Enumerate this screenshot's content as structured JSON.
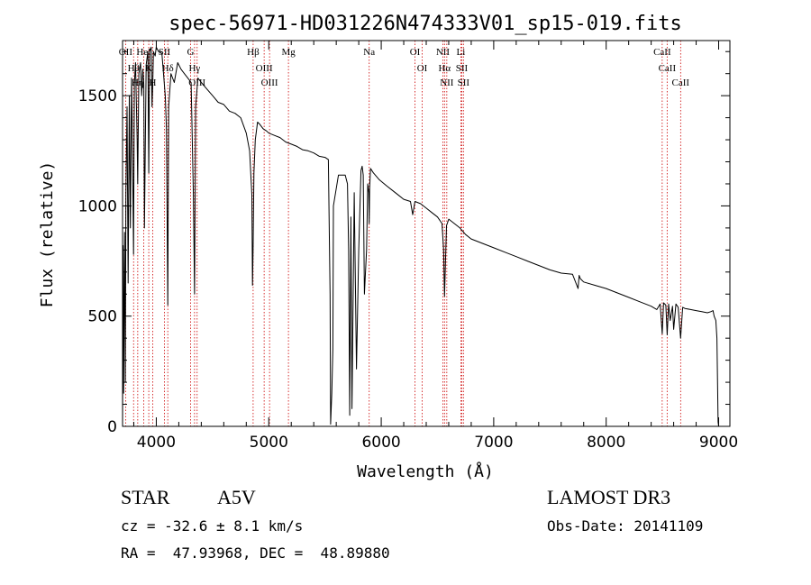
{
  "chart_data": {
    "type": "line",
    "title": "spec-56971-HD031226N474333V01_sp15-019.fits",
    "xlabel": "Wavelength (Å)",
    "ylabel": "Flux (relative)",
    "xlim": [
      3700,
      9100
    ],
    "ylim": [
      0,
      1750
    ],
    "xticks": [
      4000,
      5000,
      6000,
      7000,
      8000,
      9000
    ],
    "xtick_labels": [
      "4000",
      "5000",
      "6000",
      "7000",
      "8000",
      "9000"
    ],
    "yticks": [
      0,
      500,
      1000,
      1500
    ],
    "ytick_labels": [
      "0",
      "500",
      "1000",
      "1500"
    ],
    "series": [
      {
        "name": "spectrum",
        "x": [
          3700,
          3705,
          3710,
          3718,
          3725,
          3730,
          3740,
          3750,
          3760,
          3770,
          3780,
          3790,
          3798,
          3805,
          3815,
          3830,
          3835,
          3845,
          3860,
          3870,
          3880,
          3889,
          3895,
          3910,
          3925,
          3933,
          3940,
          3955,
          3962,
          3968,
          3975,
          3990,
          4000,
          4020,
          4050,
          4080,
          4090,
          4102,
          4110,
          4130,
          4160,
          4190,
          4220,
          4250,
          4280,
          4310,
          4330,
          4340,
          4350,
          4370,
          4400,
          4450,
          4500,
          4550,
          4600,
          4650,
          4700,
          4750,
          4800,
          4830,
          4850,
          4855,
          4861,
          4868,
          4880,
          4900,
          4920,
          4950,
          4980,
          5000,
          5050,
          5100,
          5150,
          5200,
          5250,
          5300,
          5350,
          5400,
          5450,
          5500,
          5530,
          5545,
          5550,
          5560,
          5570,
          5575,
          5620,
          5680,
          5700,
          5710,
          5720,
          5730,
          5740,
          5760,
          5780,
          5800,
          5820,
          5830,
          5840,
          5850,
          5870,
          5880,
          5890,
          5893,
          5897,
          5905,
          5930,
          5980,
          6050,
          6100,
          6150,
          6200,
          6260,
          6280,
          6300,
          6350,
          6400,
          6450,
          6500,
          6540,
          6555,
          6563,
          6570,
          6580,
          6600,
          6650,
          6700,
          6750,
          6800,
          6900,
          7000,
          7100,
          7200,
          7300,
          7400,
          7500,
          7600,
          7700,
          7750,
          7760,
          7770,
          7800,
          7900,
          8000,
          8100,
          8200,
          8300,
          8400,
          8450,
          8480,
          8498,
          8510,
          8530,
          8542,
          8555,
          8570,
          8590,
          8600,
          8620,
          8640,
          8662,
          8680,
          8700,
          8750,
          8800,
          8850,
          8900,
          8930,
          8950,
          8960,
          8975,
          8985,
          8995,
          9000
        ],
        "values": [
          0,
          820,
          150,
          880,
          200,
          1050,
          1450,
          650,
          1500,
          900,
          1580,
          1200,
          780,
          1550,
          1650,
          1300,
          1100,
          1600,
          1650,
          1500,
          1620,
          1550,
          900,
          1640,
          1700,
          1150,
          1700,
          1720,
          1450,
          1550,
          1700,
          1680,
          1720,
          1700,
          1690,
          1500,
          1350,
          550,
          1450,
          1600,
          1560,
          1650,
          1620,
          1600,
          1580,
          1560,
          1050,
          600,
          1450,
          1580,
          1560,
          1530,
          1500,
          1470,
          1460,
          1430,
          1420,
          1400,
          1330,
          1250,
          1050,
          640,
          820,
          1150,
          1300,
          1380,
          1370,
          1350,
          1340,
          1330,
          1320,
          1310,
          1290,
          1280,
          1270,
          1255,
          1250,
          1240,
          1225,
          1220,
          1210,
          600,
          10,
          150,
          350,
          1000,
          1140,
          1140,
          1100,
          800,
          50,
          950,
          80,
          1060,
          260,
          800,
          1160,
          1180,
          1140,
          600,
          800,
          1100,
          1060,
          920,
          1080,
          1170,
          1150,
          1120,
          1090,
          1070,
          1050,
          1030,
          1020,
          960,
          1020,
          1010,
          990,
          970,
          950,
          920,
          800,
          590,
          720,
          910,
          940,
          920,
          900,
          870,
          850,
          830,
          810,
          790,
          770,
          750,
          730,
          710,
          695,
          690,
          625,
          685,
          670,
          655,
          640,
          625,
          605,
          585,
          565,
          545,
          530,
          555,
          420,
          560,
          550,
          415,
          555,
          480,
          545,
          440,
          555,
          540,
          400,
          540,
          535,
          530,
          525,
          520,
          515,
          520,
          525,
          500,
          480,
          400,
          20,
          0
        ]
      }
    ],
    "line_markers": [
      {
        "label": "OII",
        "wl": 3727
      },
      {
        "label": "Hθ",
        "wl": 3798
      },
      {
        "label": "Hη",
        "wl": 3835
      },
      {
        "label": "HeI",
        "wl": 3889
      },
      {
        "label": "K",
        "wl": 3933
      },
      {
        "label": "H",
        "wl": 3968
      },
      {
        "label": "SII",
        "wl": 4072
      },
      {
        "label": "Hδ",
        "wl": 4102
      },
      {
        "label": "G",
        "wl": 4305
      },
      {
        "label": "Hγ",
        "wl": 4340
      },
      {
        "label": "OIII",
        "wl": 4363
      },
      {
        "label": "Hβ",
        "wl": 4861
      },
      {
        "label": "OIII",
        "wl": 4959
      },
      {
        "label": "OIII",
        "wl": 5007
      },
      {
        "label": "Mg",
        "wl": 5175
      },
      {
        "label": "Na",
        "wl": 5893
      },
      {
        "label": "OI",
        "wl": 6300
      },
      {
        "label": "OI",
        "wl": 6364
      },
      {
        "label": "NII",
        "wl": 6548
      },
      {
        "label": "Hα",
        "wl": 6563
      },
      {
        "label": "NII",
        "wl": 6583
      },
      {
        "label": "Li",
        "wl": 6708
      },
      {
        "label": "SII",
        "wl": 6716
      },
      {
        "label": "SII",
        "wl": 6731
      },
      {
        "label": "CaII",
        "wl": 8498
      },
      {
        "label": "CaII",
        "wl": 8542
      },
      {
        "label": "CaII",
        "wl": 8662
      }
    ],
    "colors": {
      "spectrum": "#000000",
      "markers": "#cc0000",
      "axes": "#000000"
    }
  },
  "info": {
    "object_class": "STAR",
    "subclass": "A5V",
    "survey": "LAMOST DR3",
    "redshift_text": "cz = -32.6 ± 8.1 km/s",
    "obs_date_text": "Obs-Date: 20141109",
    "coords_text": "RA =  47.93968, DEC =  48.89880"
  }
}
